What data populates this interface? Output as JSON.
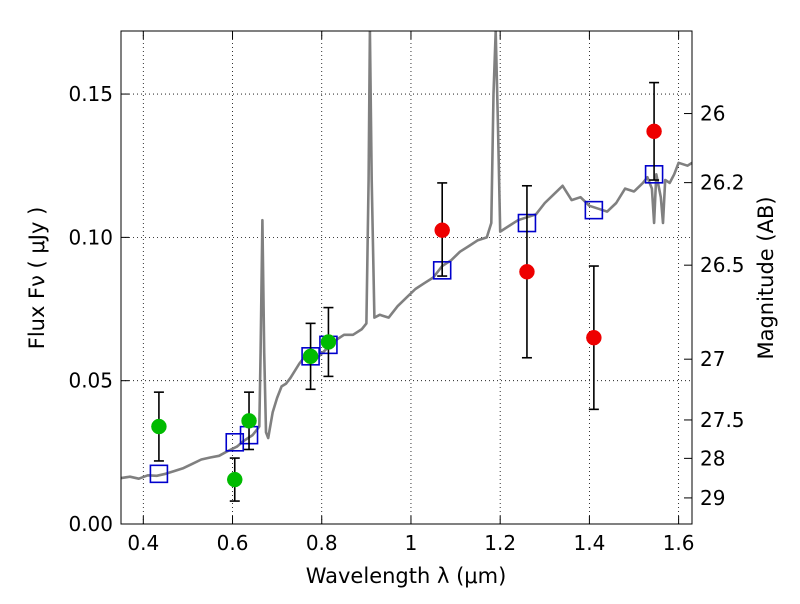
{
  "chart_data": {
    "type": "scatter",
    "xlabel": "Wavelength  λ (μm)",
    "ylabel": "Flux  Fν  ( μJy )",
    "y2label": "Magnitude (AB)",
    "xlim": [
      0.35,
      1.63
    ],
    "ylim": [
      0.0,
      0.172
    ],
    "grid": true,
    "x_ticks": [
      {
        "value": 0.4,
        "label": "0.4"
      },
      {
        "value": 0.6,
        "label": "0.6"
      },
      {
        "value": 0.8,
        "label": "0.8"
      },
      {
        "value": 1.0,
        "label": "1"
      },
      {
        "value": 1.2,
        "label": "1.2"
      },
      {
        "value": 1.4,
        "label": "1.4"
      },
      {
        "value": 1.6,
        "label": "1.6"
      }
    ],
    "y_ticks": [
      {
        "value": 0.0,
        "label": "0.00"
      },
      {
        "value": 0.05,
        "label": "0.05"
      },
      {
        "value": 0.1,
        "label": "0.10"
      },
      {
        "value": 0.15,
        "label": "0.15"
      }
    ],
    "y2_ticks": [
      {
        "label": "26",
        "flux": 0.1432
      },
      {
        "label": "26.2",
        "flux": 0.1191
      },
      {
        "label": "26.5",
        "flux": 0.0903
      },
      {
        "label": "27",
        "flux": 0.0575
      },
      {
        "label": "27.5",
        "flux": 0.0363
      },
      {
        "label": "28",
        "flux": 0.0229
      },
      {
        "label": "29",
        "flux": 0.0091
      }
    ],
    "colors": {
      "model": "#808080",
      "model_points": "#0000cc",
      "ground_photometry": "#00bb00",
      "hst_photometry": "#ee0000",
      "error_bar": "#000000",
      "grid": "#000000"
    },
    "series": [
      {
        "role": "model_sed",
        "style": "line",
        "color": "#808080",
        "points": [
          [
            0.35,
            0.016
          ],
          [
            0.37,
            0.0165
          ],
          [
            0.39,
            0.0158
          ],
          [
            0.41,
            0.017
          ],
          [
            0.43,
            0.0168
          ],
          [
            0.45,
            0.0175
          ],
          [
            0.47,
            0.0185
          ],
          [
            0.49,
            0.0195
          ],
          [
            0.51,
            0.021
          ],
          [
            0.53,
            0.0225
          ],
          [
            0.55,
            0.0232
          ],
          [
            0.57,
            0.0238
          ],
          [
            0.59,
            0.0255
          ],
          [
            0.61,
            0.027
          ],
          [
            0.625,
            0.029
          ],
          [
            0.635,
            0.03
          ],
          [
            0.645,
            0.031
          ],
          [
            0.655,
            0.033
          ],
          [
            0.66,
            0.034
          ],
          [
            0.663,
            0.06
          ],
          [
            0.667,
            0.106
          ],
          [
            0.671,
            0.06
          ],
          [
            0.675,
            0.032
          ],
          [
            0.68,
            0.03
          ],
          [
            0.69,
            0.039
          ],
          [
            0.7,
            0.044
          ],
          [
            0.71,
            0.048
          ],
          [
            0.72,
            0.049
          ],
          [
            0.73,
            0.051
          ],
          [
            0.75,
            0.056
          ],
          [
            0.77,
            0.06
          ],
          [
            0.79,
            0.058
          ],
          [
            0.81,
            0.061
          ],
          [
            0.83,
            0.064
          ],
          [
            0.85,
            0.066
          ],
          [
            0.87,
            0.066
          ],
          [
            0.89,
            0.068
          ],
          [
            0.9,
            0.07
          ],
          [
            0.905,
            0.12
          ],
          [
            0.908,
            0.172
          ],
          [
            0.912,
            0.12
          ],
          [
            0.918,
            0.072
          ],
          [
            0.93,
            0.073
          ],
          [
            0.95,
            0.072
          ],
          [
            0.97,
            0.076
          ],
          [
            0.99,
            0.079
          ],
          [
            1.01,
            0.082
          ],
          [
            1.03,
            0.084
          ],
          [
            1.05,
            0.086
          ],
          [
            1.07,
            0.09
          ],
          [
            1.09,
            0.092
          ],
          [
            1.11,
            0.095
          ],
          [
            1.13,
            0.097
          ],
          [
            1.15,
            0.099
          ],
          [
            1.17,
            0.1
          ],
          [
            1.18,
            0.105
          ],
          [
            1.185,
            0.15
          ],
          [
            1.19,
            0.172
          ],
          [
            1.195,
            0.14
          ],
          [
            1.2,
            0.102
          ],
          [
            1.22,
            0.104
          ],
          [
            1.24,
            0.106
          ],
          [
            1.26,
            0.107
          ],
          [
            1.28,
            0.108
          ],
          [
            1.3,
            0.112
          ],
          [
            1.32,
            0.115
          ],
          [
            1.34,
            0.118
          ],
          [
            1.36,
            0.113
          ],
          [
            1.38,
            0.114
          ],
          [
            1.4,
            0.111
          ],
          [
            1.42,
            0.11
          ],
          [
            1.44,
            0.109
          ],
          [
            1.46,
            0.112
          ],
          [
            1.48,
            0.117
          ],
          [
            1.5,
            0.116
          ],
          [
            1.52,
            0.119
          ],
          [
            1.53,
            0.121
          ],
          [
            1.54,
            0.117
          ],
          [
            1.545,
            0.105
          ],
          [
            1.55,
            0.122
          ],
          [
            1.56,
            0.114
          ],
          [
            1.565,
            0.105
          ],
          [
            1.57,
            0.12
          ],
          [
            1.58,
            0.119
          ],
          [
            1.59,
            0.122
          ],
          [
            1.6,
            0.126
          ],
          [
            1.62,
            0.125
          ],
          [
            1.63,
            0.126
          ]
        ]
      },
      {
        "role": "model_photometry",
        "style": "open-square",
        "color": "#0000cc",
        "points": [
          [
            0.435,
            0.0175
          ],
          [
            0.605,
            0.0285
          ],
          [
            0.637,
            0.031
          ],
          [
            0.775,
            0.0585
          ],
          [
            0.815,
            0.0625
          ],
          [
            1.07,
            0.0885
          ],
          [
            1.26,
            0.105
          ],
          [
            1.41,
            0.1095
          ],
          [
            1.545,
            0.122
          ]
        ]
      },
      {
        "role": "ground_photometry",
        "style": "filled-circle",
        "color": "#00bb00",
        "points": [
          {
            "x": 0.435,
            "y": 0.034,
            "err_lo": 0.012,
            "err_hi": 0.012
          },
          {
            "x": 0.605,
            "y": 0.0155,
            "err_lo": 0.0075,
            "err_hi": 0.0075
          },
          {
            "x": 0.637,
            "y": 0.036,
            "err_lo": 0.01,
            "err_hi": 0.01
          },
          {
            "x": 0.775,
            "y": 0.0585,
            "err_lo": 0.0115,
            "err_hi": 0.0115
          },
          {
            "x": 0.815,
            "y": 0.0635,
            "err_lo": 0.012,
            "err_hi": 0.012
          }
        ]
      },
      {
        "role": "hst_photometry",
        "style": "filled-circle",
        "color": "#ee0000",
        "points": [
          {
            "x": 1.07,
            "y": 0.1025,
            "err_lo": 0.016,
            "err_hi": 0.0165
          },
          {
            "x": 1.26,
            "y": 0.088,
            "err_lo": 0.03,
            "err_hi": 0.03
          },
          {
            "x": 1.41,
            "y": 0.065,
            "err_lo": 0.025,
            "err_hi": 0.025
          },
          {
            "x": 1.545,
            "y": 0.137,
            "err_lo": 0.017,
            "err_hi": 0.017
          }
        ]
      }
    ]
  }
}
